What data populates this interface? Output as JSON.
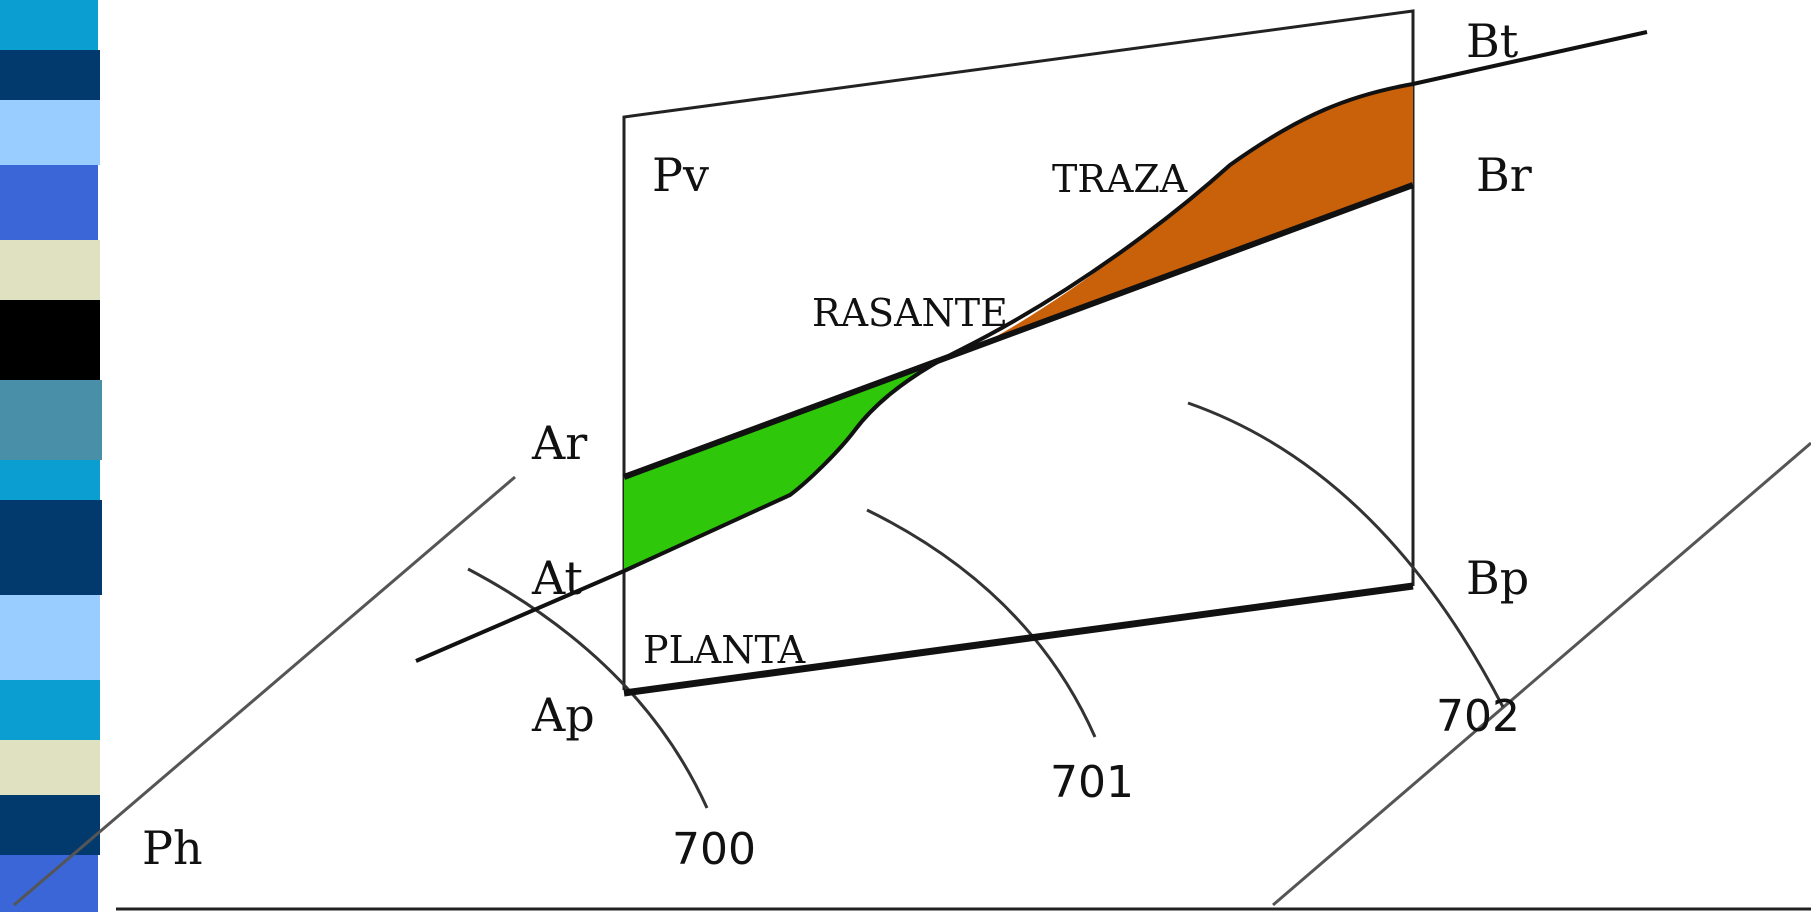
{
  "colors": {
    "cut": "#2ec70a",
    "fill": "#c9600a",
    "line": "#111111",
    "stripes": [
      "#0a9fd0",
      "#033a6e",
      "#99ccff",
      "#3a66d8",
      "#dfe1c0",
      "#000000",
      "#4a8fa8",
      "#0a9fd0",
      "#033a6e",
      "#99ccff",
      "#0a9fd0",
      "#dfe1c0",
      "#033a6e",
      "#3a66d8"
    ]
  },
  "labels": {
    "pv": "Pv",
    "traza": "TRAZA",
    "br": "Br",
    "bt": "Bt",
    "rasante": "RASANTE",
    "ar": "Ar",
    "at": "At",
    "bp": "Bp",
    "planta": "PLANTA",
    "ap": "Ap",
    "ph": "Ph",
    "c700": "700",
    "c701": "701",
    "c702": "702"
  }
}
